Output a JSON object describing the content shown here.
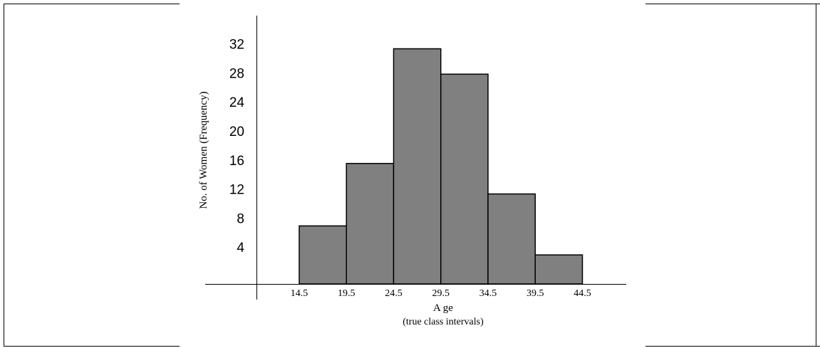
{
  "chart_data": {
    "type": "bar",
    "subtype": "histogram",
    "bins": [
      {
        "start": 14.5,
        "end": 19.5,
        "frequency": 8
      },
      {
        "start": 19.5,
        "end": 24.5,
        "frequency": 16.6
      },
      {
        "start": 24.5,
        "end": 29.5,
        "frequency": 32.4
      },
      {
        "start": 29.5,
        "end": 34.5,
        "frequency": 28.9
      },
      {
        "start": 34.5,
        "end": 39.5,
        "frequency": 12.4
      },
      {
        "start": 39.5,
        "end": 44.5,
        "frequency": 4
      }
    ],
    "x_ticks": [
      "14.5",
      "19.5",
      "24.5",
      "29.5",
      "34.5",
      "39.5",
      "44.5"
    ],
    "y_ticks": [
      "4",
      "8",
      "12",
      "16",
      "20",
      "24",
      "28",
      "32"
    ],
    "xlabel": "A ge",
    "xlabel_sub": "(true class intervals)",
    "ylabel": "No. of Women  (Frequency)",
    "ylim": [
      0,
      32
    ],
    "grid": false,
    "bar_color": "#808080",
    "edge_color": "#000000"
  }
}
